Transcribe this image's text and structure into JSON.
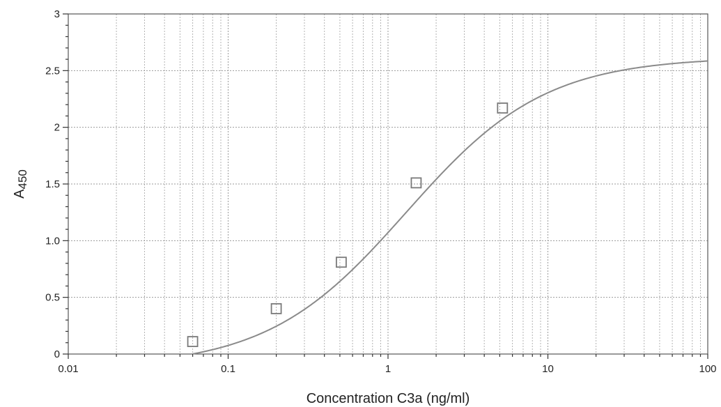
{
  "chart_data": {
    "type": "scatter",
    "xscale": "log",
    "xlim": [
      0.01,
      100
    ],
    "ylim": [
      0,
      3
    ],
    "xlabel": "Concentration C3a (ng/ml)",
    "ylabel": "A",
    "ylabel_subscript": "450",
    "grid": true,
    "x_ticks": [
      {
        "value": 0.01,
        "label": "0.01"
      },
      {
        "value": 0.1,
        "label": "0.1"
      },
      {
        "value": 1,
        "label": "1"
      },
      {
        "value": 10,
        "label": "10"
      },
      {
        "value": 100,
        "label": "100"
      }
    ],
    "y_ticks": [
      {
        "value": 0,
        "label": "0"
      },
      {
        "value": 0.5,
        "label": "0.5"
      },
      {
        "value": 1.0,
        "label": "1.0"
      },
      {
        "value": 1.5,
        "label": "1.5"
      },
      {
        "value": 2,
        "label": "2"
      },
      {
        "value": 2.5,
        "label": "2.5"
      },
      {
        "value": 3,
        "label": "3"
      }
    ],
    "series": [
      {
        "marker": "square",
        "color": "#7a7a7a",
        "x": [
          0.06,
          0.2,
          0.51,
          1.5,
          5.2
        ],
        "y": [
          0.11,
          0.4,
          0.81,
          1.51,
          2.17
        ]
      }
    ],
    "fit_curve": {
      "model": "4PL",
      "color": "#8a8a8a",
      "bottom": -0.12,
      "top": 2.62,
      "ec50": 1.3,
      "hill": 1.0
    }
  }
}
